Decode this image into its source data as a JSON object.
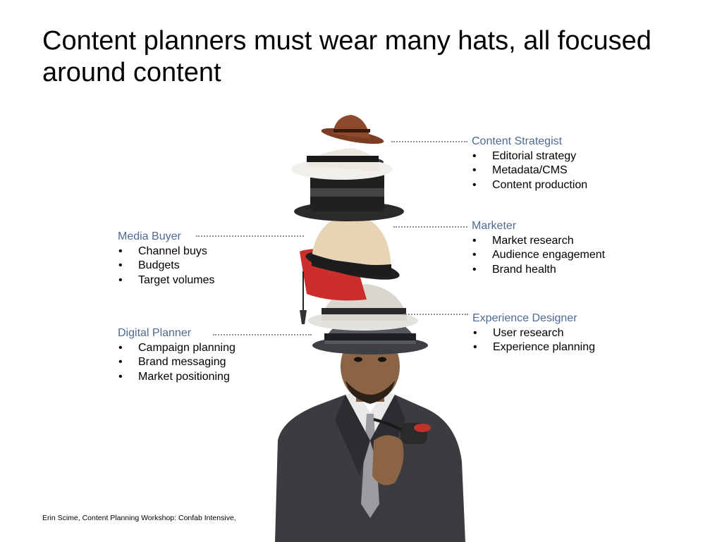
{
  "title": "Content planners must wear many hats, all focused around content",
  "roles": {
    "content_strategist": {
      "name": "Content Strategist",
      "items": [
        "Editorial strategy",
        "Metadata/CMS",
        "Content production"
      ]
    },
    "marketer": {
      "name": "Marketer",
      "items": [
        "Market research",
        "Audience engagement",
        "Brand health"
      ]
    },
    "experience_designer": {
      "name": "Experience Designer",
      "items": [
        "User research",
        "Experience planning"
      ]
    },
    "media_buyer": {
      "name": "Media Buyer",
      "items": [
        "Channel buys",
        "Budgets",
        "Target volumes"
      ]
    },
    "digital_planner": {
      "name": "Digital Planner",
      "items": [
        "Campaign planning",
        "Brand messaging",
        "Market positioning"
      ]
    }
  },
  "bullet": "•",
  "footer": "Erin Scime, Content Planning Workshop: Confab Intensive,",
  "colors": {
    "role_name": "#4f6a92",
    "leader": "#8f8f8f",
    "text": "#000000",
    "background": "#ffffff"
  }
}
